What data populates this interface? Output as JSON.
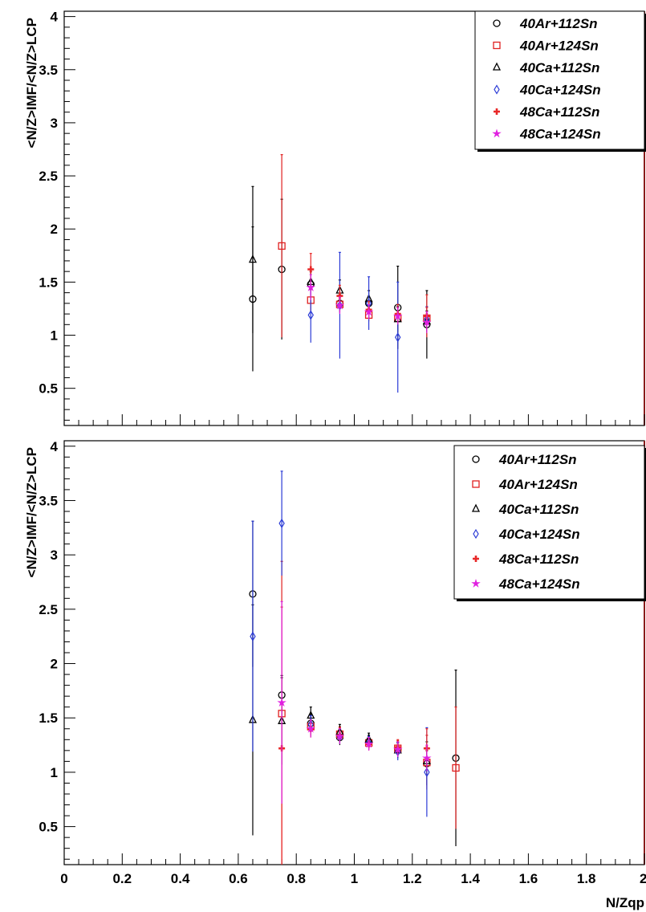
{
  "chart_data": [
    {
      "type": "scatter",
      "ylabel": "<N/Z>IMF/<N/Z>LCP",
      "xlabel": "",
      "xlim": [
        0,
        2
      ],
      "ylim": [
        0.15,
        4.05
      ],
      "y_ticks": [
        "0.5",
        "1",
        "1.5",
        "2",
        "2.5",
        "3",
        "3.5",
        "4"
      ],
      "grid": false,
      "legend_position": "top-right",
      "series": [
        {
          "name": "40Ar+112Sn",
          "color": "#000000",
          "marker": "circle",
          "points": [
            {
              "x": 0.65,
              "y": 1.34,
              "err": 0.68
            },
            {
              "x": 0.75,
              "y": 1.62,
              "err": 0.66
            },
            {
              "x": 0.85,
              "y": 1.48,
              "err": 0.12
            },
            {
              "x": 0.95,
              "y": 1.3,
              "err": 0.08
            },
            {
              "x": 1.05,
              "y": 1.3,
              "err": 0.06
            },
            {
              "x": 1.15,
              "y": 1.26,
              "err": 0.39
            },
            {
              "x": 1.25,
              "y": 1.1,
              "err": 0.32
            }
          ]
        },
        {
          "name": "40Ar+124Sn",
          "color": "#e02020",
          "marker": "square",
          "points": [
            {
              "x": 0.75,
              "y": 1.84,
              "err": 0.86
            },
            {
              "x": 0.85,
              "y": 1.33,
              "err": 0.1
            },
            {
              "x": 0.95,
              "y": 1.29,
              "err": 0.08
            },
            {
              "x": 1.05,
              "y": 1.19,
              "err": 0.06
            },
            {
              "x": 1.15,
              "y": 1.16,
              "err": 0.1
            },
            {
              "x": 1.25,
              "y": 1.16,
              "err": 0.1
            }
          ]
        },
        {
          "name": "40Ca+112Sn",
          "color": "#000000",
          "marker": "triangle",
          "points": [
            {
              "x": 0.65,
              "y": 1.71,
              "err": 0.69
            },
            {
              "x": 0.85,
              "y": 1.5,
              "err": 0.12
            },
            {
              "x": 0.95,
              "y": 1.42,
              "err": 0.1
            },
            {
              "x": 1.05,
              "y": 1.34,
              "err": 0.08
            },
            {
              "x": 1.15,
              "y": 1.15,
              "err": 0.12
            },
            {
              "x": 1.25,
              "y": 1.13,
              "err": 0.1
            }
          ]
        },
        {
          "name": "40Ca+124Sn",
          "color": "#2b3bd6",
          "marker": "diamond",
          "points": [
            {
              "x": 0.85,
              "y": 1.19,
              "err": 0.26
            },
            {
              "x": 0.95,
              "y": 1.28,
              "err": 0.5
            },
            {
              "x": 1.05,
              "y": 1.3,
              "err": 0.25
            },
            {
              "x": 1.15,
              "y": 0.98,
              "err": 0.52
            },
            {
              "x": 1.25,
              "y": 1.15,
              "err": 0.12
            }
          ]
        },
        {
          "name": "48Ca+112Sn",
          "color": "#e82828",
          "marker": "cross",
          "points": [
            {
              "x": 0.85,
              "y": 1.62,
              "err": 0.15
            },
            {
              "x": 0.95,
              "y": 1.37,
              "err": 0.1
            },
            {
              "x": 1.05,
              "y": 1.24,
              "err": 0.08
            },
            {
              "x": 1.15,
              "y": 1.2,
              "err": 0.09
            },
            {
              "x": 1.25,
              "y": 1.18,
              "err": 0.2
            }
          ]
        },
        {
          "name": "48Ca+124Sn",
          "color": "#e020e0",
          "marker": "star",
          "points": [
            {
              "x": 0.85,
              "y": 1.45,
              "err": 0.12
            },
            {
              "x": 0.95,
              "y": 1.28,
              "err": 0.08
            },
            {
              "x": 1.05,
              "y": 1.22,
              "err": 0.07
            },
            {
              "x": 1.15,
              "y": 1.18,
              "err": 0.08
            },
            {
              "x": 1.25,
              "y": 1.12,
              "err": 0.1
            }
          ]
        }
      ]
    },
    {
      "type": "scatter",
      "ylabel": "<N/Z>IMF/<N/Z>LCP",
      "xlabel": "N/Zqp",
      "xlim": [
        0,
        2
      ],
      "ylim": [
        0.15,
        4.05
      ],
      "x_ticks": [
        "0",
        "0.2",
        "0.4",
        "0.6",
        "0.8",
        "1",
        "1.2",
        "1.4",
        "1.6",
        "1.8",
        "2"
      ],
      "y_ticks": [
        "0.5",
        "1",
        "1.5",
        "2",
        "2.5",
        "3",
        "3.5",
        "4"
      ],
      "grid": false,
      "legend_position": "top-right",
      "series": [
        {
          "name": "40Ar+112Sn",
          "color": "#000000",
          "marker": "circle",
          "points": [
            {
              "x": 0.65,
              "y": 2.64,
              "err": 0.67
            },
            {
              "x": 0.75,
              "y": 1.71,
              "err": 0.18
            },
            {
              "x": 0.85,
              "y": 1.45,
              "err": 0.08
            },
            {
              "x": 0.95,
              "y": 1.32,
              "err": 0.07
            },
            {
              "x": 1.05,
              "y": 1.28,
              "err": 0.06
            },
            {
              "x": 1.15,
              "y": 1.21,
              "err": 0.07
            },
            {
              "x": 1.25,
              "y": 1.08,
              "err": 0.2
            },
            {
              "x": 1.35,
              "y": 1.13,
              "err": 0.81
            }
          ]
        },
        {
          "name": "40Ar+124Sn",
          "color": "#e02020",
          "marker": "square",
          "points": [
            {
              "x": 0.75,
              "y": 1.54,
              "err": 1.4
            },
            {
              "x": 0.85,
              "y": 1.42,
              "err": 0.08
            },
            {
              "x": 0.95,
              "y": 1.35,
              "err": 0.07
            },
            {
              "x": 1.05,
              "y": 1.27,
              "err": 0.06
            },
            {
              "x": 1.15,
              "y": 1.22,
              "err": 0.07
            },
            {
              "x": 1.25,
              "y": 1.09,
              "err": 0.25
            },
            {
              "x": 1.35,
              "y": 1.04,
              "err": 0.56
            }
          ]
        },
        {
          "name": "40Ca+112Sn",
          "color": "#000000",
          "marker": "triangle",
          "points": [
            {
              "x": 0.65,
              "y": 1.48,
              "err": 1.06
            },
            {
              "x": 0.75,
              "y": 1.47,
              "err": 0.4
            },
            {
              "x": 0.85,
              "y": 1.52,
              "err": 0.08
            },
            {
              "x": 0.95,
              "y": 1.37,
              "err": 0.07
            },
            {
              "x": 1.05,
              "y": 1.3,
              "err": 0.06
            },
            {
              "x": 1.15,
              "y": 1.2,
              "err": 0.07
            },
            {
              "x": 1.25,
              "y": 1.1,
              "err": 0.1
            }
          ]
        },
        {
          "name": "40Ca+124Sn",
          "color": "#2b3bd6",
          "marker": "diamond",
          "points": [
            {
              "x": 0.65,
              "y": 2.25,
              "err": 1.06
            },
            {
              "x": 0.75,
              "y": 3.29,
              "err": 0.48
            },
            {
              "x": 0.85,
              "y": 1.44,
              "err": 0.08
            },
            {
              "x": 0.95,
              "y": 1.33,
              "err": 0.07
            },
            {
              "x": 1.05,
              "y": 1.27,
              "err": 0.06
            },
            {
              "x": 1.15,
              "y": 1.19,
              "err": 0.08
            },
            {
              "x": 1.25,
              "y": 1.0,
              "err": 0.41
            }
          ]
        },
        {
          "name": "48Ca+112Sn",
          "color": "#e82828",
          "marker": "cross",
          "points": [
            {
              "x": 0.75,
              "y": 1.22,
              "err": 1.3
            },
            {
              "x": 0.85,
              "y": 1.4,
              "err": 0.08
            },
            {
              "x": 0.95,
              "y": 1.34,
              "err": 0.07
            },
            {
              "x": 1.05,
              "y": 1.26,
              "err": 0.06
            },
            {
              "x": 1.15,
              "y": 1.23,
              "err": 0.07
            },
            {
              "x": 1.25,
              "y": 1.22,
              "err": 0.18
            }
          ]
        },
        {
          "name": "48Ca+124Sn",
          "color": "#e020e0",
          "marker": "star",
          "points": [
            {
              "x": 0.75,
              "y": 1.64,
              "err": 0.93
            },
            {
              "x": 0.85,
              "y": 1.4,
              "err": 0.08
            },
            {
              "x": 0.95,
              "y": 1.33,
              "err": 0.07
            },
            {
              "x": 1.05,
              "y": 1.26,
              "err": 0.06
            },
            {
              "x": 1.15,
              "y": 1.21,
              "err": 0.07
            },
            {
              "x": 1.25,
              "y": 1.13,
              "err": 0.12
            }
          ]
        }
      ]
    }
  ],
  "colors": {
    "frame": "#8a1c1c",
    "axis": "#000000"
  }
}
